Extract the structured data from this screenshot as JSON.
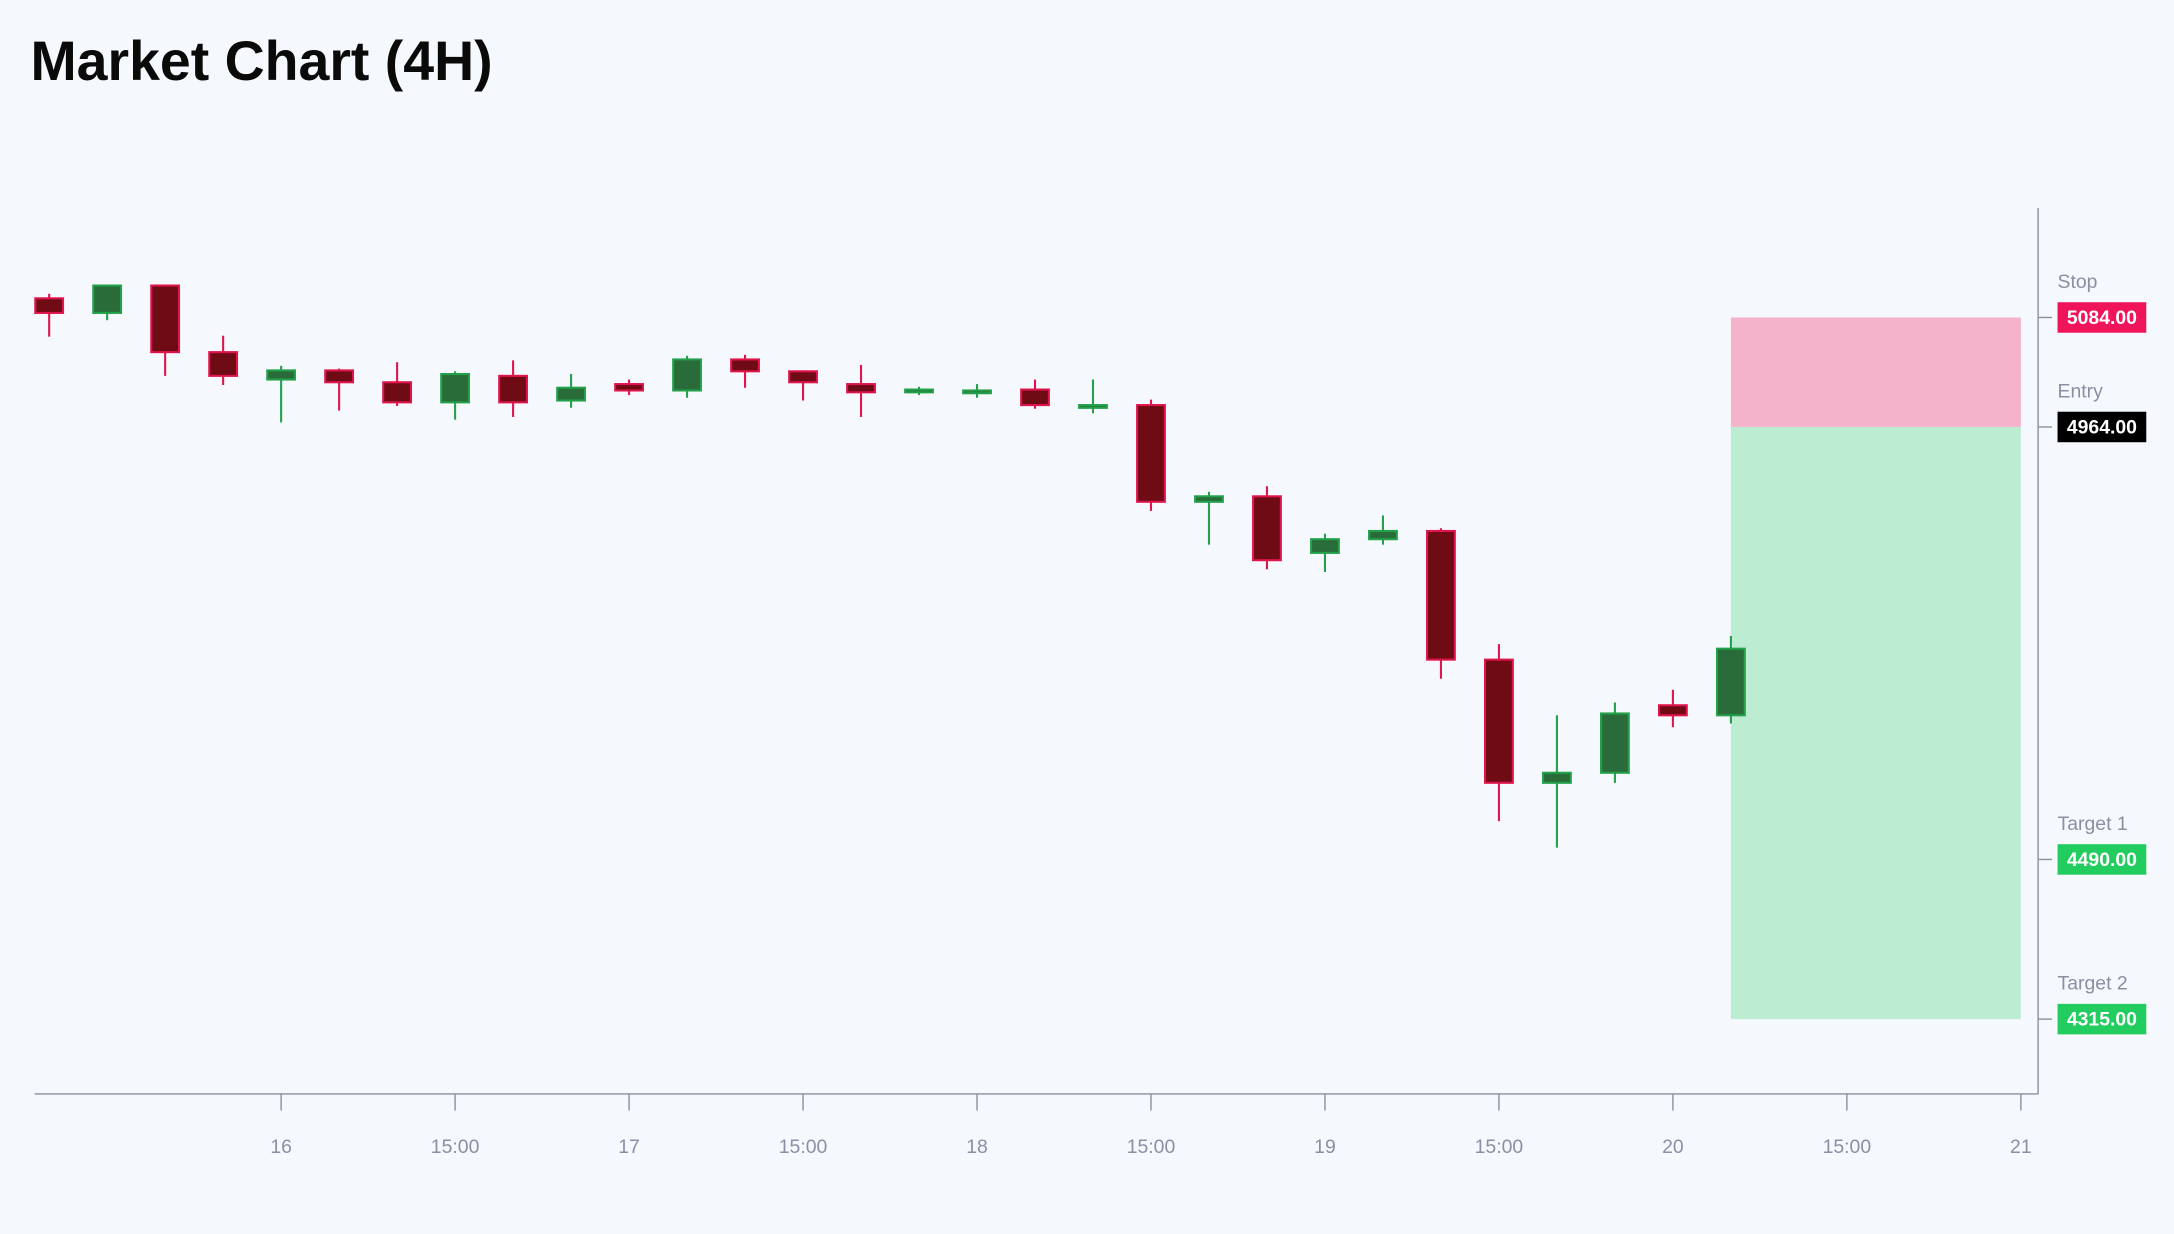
{
  "chart_data": {
    "type": "candlestick",
    "title": "Market Chart (4H)",
    "x": [
      8,
      12,
      16,
      20,
      24,
      28,
      32,
      36,
      40,
      44,
      48,
      52,
      56,
      60,
      64,
      68,
      72,
      76,
      80,
      84,
      88,
      92,
      96,
      100,
      104,
      108,
      112,
      116,
      120,
      124
    ],
    "open": [
      5105,
      5089,
      5119,
      5046,
      5016,
      5026,
      5013,
      4991,
      5020,
      4993,
      5011,
      5004,
      5038,
      5025,
      5011,
      5002,
      5001,
      5005,
      4985,
      4988,
      4882,
      4888,
      4826,
      4841,
      4850,
      4709,
      4574,
      4585,
      4659,
      4648
    ],
    "high": [
      5110,
      5120,
      5120,
      5064,
      5031,
      5028,
      5035,
      5025,
      5037,
      5022,
      5016,
      5042,
      5043,
      5026,
      5032,
      5008,
      5011,
      5016,
      5016,
      4994,
      4893,
      4899,
      4847,
      4867,
      4853,
      4726,
      4648,
      4662,
      4676,
      4735
    ],
    "low": [
      5063,
      5081,
      5020,
      5010,
      4969,
      4982,
      4987,
      4972,
      4975,
      4985,
      4999,
      4996,
      5007,
      4993,
      4975,
      4999,
      4996,
      4984,
      4979,
      4872,
      4835,
      4808,
      4805,
      4835,
      4688,
      4532,
      4503,
      4574,
      4635,
      4639
    ],
    "close": [
      5089,
      5119,
      5046,
      5020,
      5026,
      5013,
      4991,
      5022,
      4991,
      5007,
      5004,
      5038,
      5025,
      5013,
      5002,
      5005,
      5004,
      4988,
      4988,
      4882,
      4888,
      4818,
      4841,
      4850,
      4709,
      4574,
      4585,
      4650,
      4648,
      4721
    ],
    "up_color": "#22a04a",
    "down_color": "#e0144c",
    "xlim": [
      7,
      145
    ],
    "xticks": [
      {
        "value": 24,
        "label": "16"
      },
      {
        "value": 36,
        "label": "15:00"
      },
      {
        "value": 48,
        "label": "17"
      },
      {
        "value": 60,
        "label": "15:00"
      },
      {
        "value": 72,
        "label": "18"
      },
      {
        "value": 84,
        "label": "15:00"
      },
      {
        "value": 96,
        "label": "19"
      },
      {
        "value": 108,
        "label": "15:00"
      },
      {
        "value": 120,
        "label": "20"
      },
      {
        "value": 132,
        "label": "15:00"
      },
      {
        "value": 144,
        "label": "21"
      }
    ],
    "ylim": [
      4233,
      5204
    ],
    "levels": [
      {
        "name": "Stop",
        "value": 5084,
        "label": "5084.00",
        "color": "#f0145a"
      },
      {
        "name": "Entry",
        "value": 4964,
        "label": "4964.00",
        "color": "#000000"
      },
      {
        "name": "Target 1",
        "value": 4490,
        "label": "4490.00",
        "color": "#22cc5e"
      },
      {
        "name": "Target 2",
        "value": 4315,
        "label": "4315.00",
        "color": "#22cc5e"
      }
    ]
  }
}
